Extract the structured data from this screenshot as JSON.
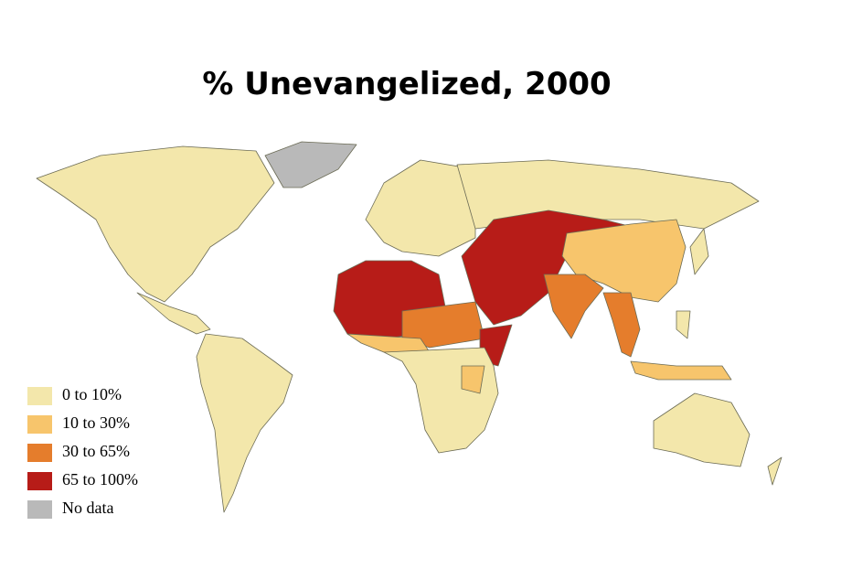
{
  "title": "% Unevangelized, 2000",
  "legend": [
    {
      "label": "0 to 10%",
      "color": "#f3e7ab"
    },
    {
      "label": "10 to 30%",
      "color": "#f7c56c"
    },
    {
      "label": "30 to 65%",
      "color": "#e57d2c"
    },
    {
      "label": "65 to 100%",
      "color": "#b71c18"
    },
    {
      "label": "No data",
      "color": "#b9b9b9"
    }
  ]
}
